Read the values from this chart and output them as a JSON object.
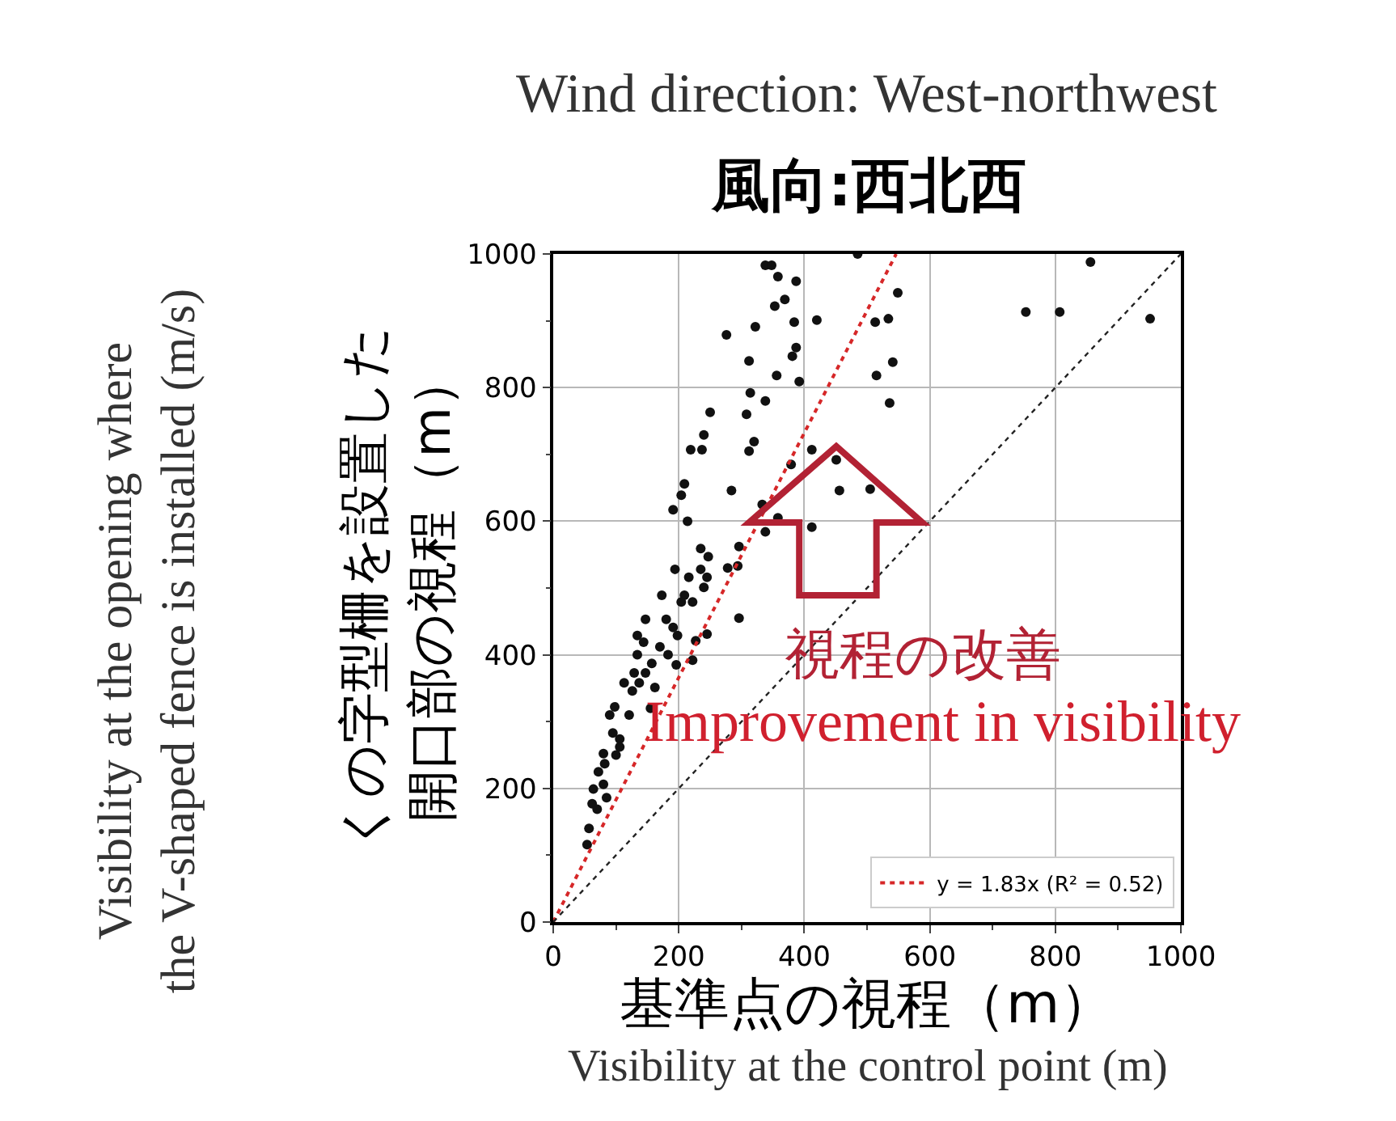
{
  "chart_data": {
    "type": "scatter",
    "title": "Wind direction: West-northwest",
    "subtitle": "風向:西北西",
    "xlabel": "基準点の視程（m）",
    "ylabel": "くの字型柵を設置した開口部の視程（m）",
    "annotations": [
      "視程の改善",
      "Improvement in visibility",
      "Visibility at the opening where\nthe V-shaped fence is installed (m/s)",
      "Visibility at the control point (m)"
    ],
    "xlim": [
      0,
      1000
    ],
    "ylim": [
      0,
      1000
    ],
    "xticks": [
      0,
      {
        "value": 100,
        "label": null
      },
      200,
      {
        "value": 300,
        "label": null
      },
      400,
      {
        "value": 500,
        "label": null
      },
      600,
      {
        "value": 700,
        "label": null
      },
      800,
      {
        "value": 900,
        "label": null
      },
      1000
    ],
    "yticks": [
      0,
      {
        "value": 100,
        "label": null
      },
      200,
      {
        "value": 300,
        "label": null
      },
      400,
      {
        "value": 500,
        "label": null
      },
      600,
      {
        "value": 700,
        "label": null
      },
      800,
      {
        "value": 900,
        "label": null
      },
      1000
    ],
    "grid": true,
    "legend": "bottom right",
    "series": [
      {
        "color": "#111111",
        "marker": "circle",
        "x": [
          338,
          348,
          485,
          358,
          387,
          369,
          353,
          549,
          384,
          420,
          513,
          534,
          322,
          276,
          387,
          381,
          312,
          541,
          356,
          515,
          392,
          314,
          338,
          536,
          250,
          308,
          240,
          219,
          237,
          320,
          312,
          412,
          451,
          379,
          209,
          204,
          284,
          456,
          505,
          333,
          191,
          214,
          358,
          338,
          412,
          235,
          247,
          296,
          194,
          235,
          216,
          278,
          294,
          245,
          173,
          209,
          753,
          807,
          856,
          951,
          204,
          222,
          240,
          147,
          180,
          296,
          191,
          134,
          198,
          245,
          144,
          170,
          227,
          134,
          183,
          157,
          196,
          222,
          147,
          129,
          113,
          137,
          162,
          126,
          155,
          98,
          90,
          121,
          106,
          80,
          100,
          82,
          72,
          80,
          64,
          85,
          62,
          70,
          57,
          54,
          95,
          106
        ],
        "values": [
          983,
          983,
          1000,
          966,
          959,
          932,
          922,
          942,
          898,
          901,
          898,
          903,
          891,
          879,
          860,
          847,
          840,
          838,
          818,
          818,
          809,
          792,
          780,
          777,
          763,
          760,
          729,
          707,
          707,
          719,
          705,
          707,
          692,
          685,
          656,
          639,
          646,
          646,
          648,
          625,
          617,
          600,
          605,
          584,
          591,
          559,
          547,
          562,
          528,
          528,
          516,
          530,
          533,
          516,
          489,
          489,
          913,
          913,
          988,
          903,
          479,
          479,
          501,
          453,
          453,
          455,
          441,
          429,
          429,
          431,
          419,
          412,
          421,
          400,
          400,
          387,
          385,
          392,
          373,
          373,
          358,
          358,
          351,
          346,
          320,
          322,
          310,
          310,
          274,
          252,
          250,
          237,
          225,
          206,
          199,
          186,
          177,
          169,
          140,
          116,
          283,
          262
        ]
      },
      {
        "type": "line",
        "name": "y = 1.83x (R² = 0.52)",
        "color": "#d62728",
        "line_style": "dotted",
        "marker": "none",
        "x": [
          0,
          546.4
        ],
        "values": [
          0,
          1000
        ]
      },
      {
        "type": "line",
        "color": "#222222",
        "line_style": "dotted",
        "marker": "none",
        "x": [
          0,
          1000
        ],
        "values": [
          0,
          1000
        ]
      }
    ]
  }
}
